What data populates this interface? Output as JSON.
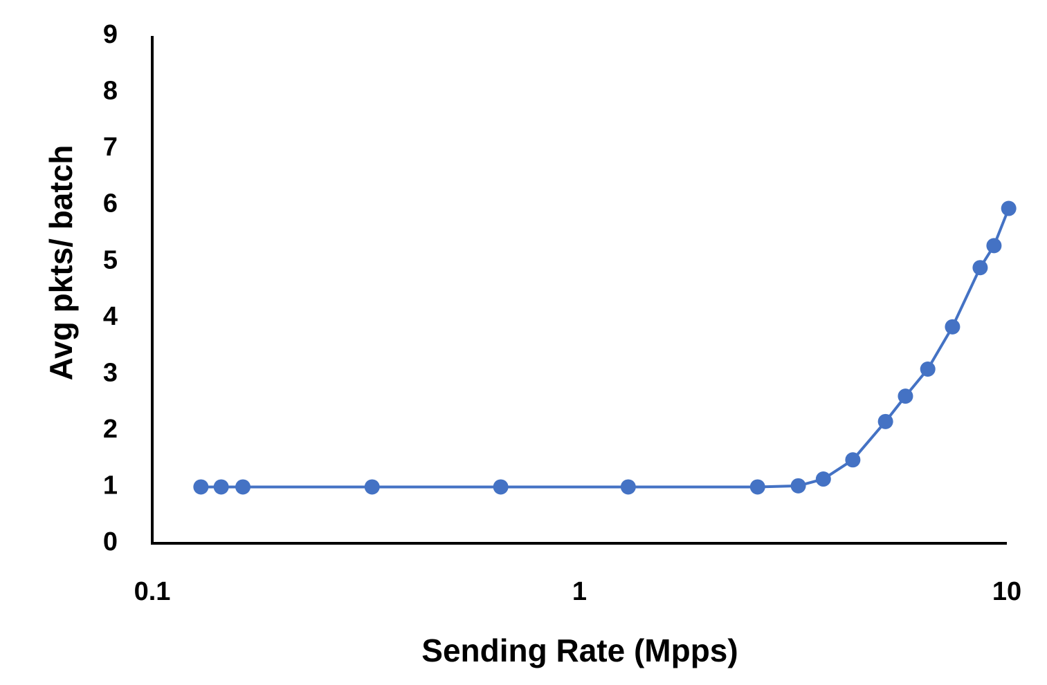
{
  "chart_data": {
    "type": "line",
    "x_label": "Sending Rate (Mpps)",
    "y_label": "Avg pkts/ batch",
    "x": [
      0.13,
      0.145,
      0.163,
      0.327,
      0.654,
      1.3,
      2.61,
      3.25,
      3.72,
      4.36,
      5.2,
      5.79,
      6.53,
      7.46,
      8.66,
      9.33,
      10.1
    ],
    "series": [
      {
        "name": "Avg pkts/ batch",
        "color": "#4472c4",
        "values": [
          1,
          1,
          1,
          1,
          1,
          1,
          1,
          1.02,
          1.14,
          1.48,
          2.16,
          2.61,
          3.09,
          3.84,
          4.89,
          5.28,
          5.94
        ]
      }
    ],
    "xscale": "log",
    "xlim": [
      0.1,
      10
    ],
    "xticks": [
      0.1,
      1,
      10
    ],
    "ylim": [
      0,
      9
    ],
    "yticks": [
      0,
      1,
      2,
      3,
      4,
      5,
      6,
      7,
      8,
      9
    ],
    "grid": false
  }
}
